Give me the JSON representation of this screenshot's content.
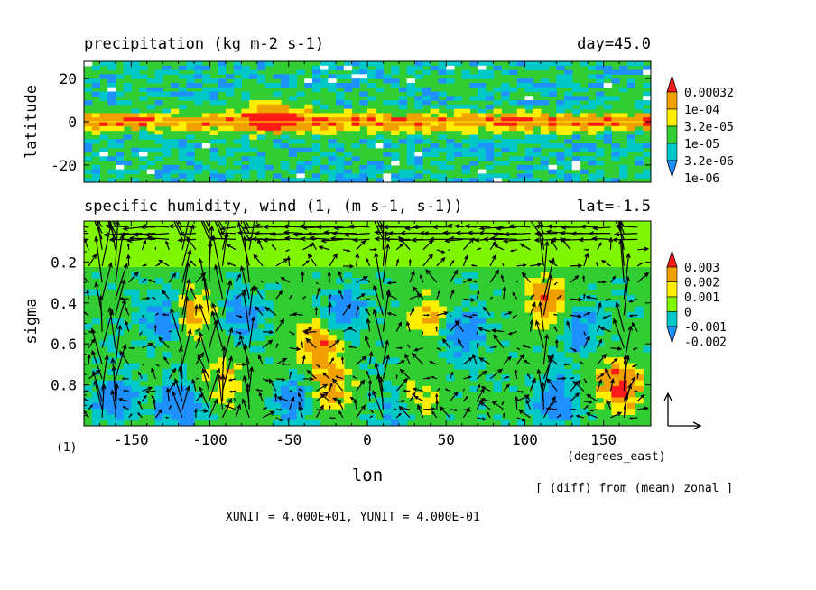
{
  "colors": {
    "white": "#ffffff",
    "blue": "#1e90ff",
    "cyan": "#00c8c8",
    "green": "#32cd32",
    "light_green": "#7ff500",
    "yellow": "#ffee00",
    "orange": "#f0a000",
    "red": "#ff1a1a"
  },
  "chart_data": [
    {
      "type": "heatmap",
      "title": "precipitation (kg m-2 s-1)",
      "right_title": "day=45.0",
      "ylabel": "latitude",
      "xlim": [
        -180,
        180
      ],
      "ylim": [
        -28,
        28
      ],
      "y_ticks": [
        20,
        0,
        -20
      ],
      "legend": {
        "position": "right",
        "levels": [
          "0.00032",
          "1e-04",
          "3.2e-05",
          "1e-05",
          "3.2e-06",
          "1e-06"
        ],
        "colors": [
          "#ff1a1a",
          "#f0a000",
          "#ffee00",
          "#32cd32",
          "#00c8c8",
          "#1e90ff"
        ]
      },
      "features": [
        {
          "description": "ITCZ band of heavy precipitation",
          "lat_range": [
            -5,
            5
          ],
          "peak_value": "0.00032"
        },
        {
          "description": "maximum near lon",
          "lon": -60,
          "lat": 5
        }
      ]
    },
    {
      "type": "heatmap",
      "title": "specific humidity, wind (1, (m s-1, s-1))",
      "right_title": "lat=-1.5",
      "xlabel": "lon",
      "ylabel": "sigma",
      "x_unit": "(degrees_east)",
      "xlim": [
        -180,
        180
      ],
      "ylim": [
        1.0,
        0.0
      ],
      "x_ticks": [
        -150,
        -100,
        -50,
        0,
        50,
        100,
        150
      ],
      "y_ticks": [
        0.2,
        0.4,
        0.6,
        0.8
      ],
      "legend": {
        "position": "right",
        "levels": [
          "0.003",
          "0.002",
          "0.001",
          "0",
          "-0.001",
          "-0.002"
        ],
        "colors": [
          "#ff1a1a",
          "#f0a000",
          "#ffee00",
          "#7ff500",
          "#00c8c8",
          "#1e90ff"
        ]
      },
      "vector_note": "(1)",
      "vector_key": "XUNIT = 4.000E+01, YUNIT = 4.000E-01",
      "annotation": "[ (diff) from (mean) zonal ]"
    }
  ]
}
